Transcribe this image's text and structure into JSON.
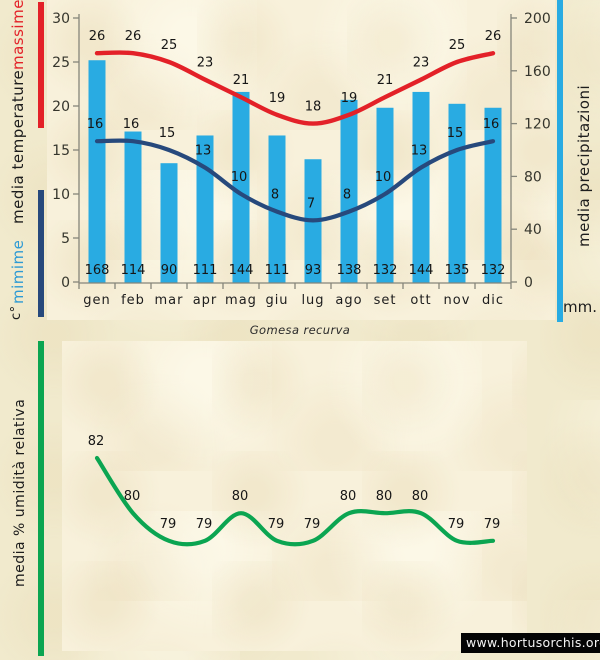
{
  "page": {
    "species_title": "Gomesa recurva",
    "watermark": "www.hortusorchis.org"
  },
  "colors": {
    "background": "#f1eacd",
    "panel": "#f8f1db",
    "precip_bar": "#29abe2",
    "max_temp_line": "#e32128",
    "min_temp_line": "#27497c",
    "humidity_line": "#0ba551",
    "value_text": "#161616",
    "tick_text": "#35352c",
    "axis_line": "#85857a"
  },
  "left_axis": {
    "label_massime": "massime",
    "label_media_temperature": "media temperature",
    "label_minime": "mimime",
    "label_unit": "c°",
    "ticks": [
      30,
      25,
      20,
      15,
      10,
      5,
      0
    ]
  },
  "right_axis": {
    "label": "media precipitazioni",
    "label_unit": "mm.",
    "ticks": [
      200,
      160,
      120,
      80,
      40,
      0
    ]
  },
  "humidity_axis": {
    "label": "media % umidità relativa"
  },
  "chart_data": [
    {
      "type": "bar",
      "title": "Gomesa recurva climate chart",
      "categories": [
        "gen",
        "feb",
        "mar",
        "apr",
        "mag",
        "giu",
        "lug",
        "ago",
        "set",
        "ott",
        "nov",
        "dic"
      ],
      "left_ylabel": "media temperature c°",
      "right_ylabel": "media precipitazioni mm.",
      "left_ylim": [
        0,
        30
      ],
      "right_ylim": [
        0,
        200
      ],
      "grid": false,
      "legend_position": "left-and-right-colored-bars",
      "series": [
        {
          "name": "massime",
          "type": "line",
          "axis": "left",
          "values": [
            26,
            26,
            25,
            23,
            21,
            19,
            18,
            19,
            21,
            23,
            25,
            26
          ]
        },
        {
          "name": "mimime",
          "type": "line",
          "axis": "left",
          "values": [
            16,
            16,
            15,
            13,
            10,
            8,
            7,
            8,
            10,
            13,
            15,
            16
          ]
        },
        {
          "name": "media precipitazioni",
          "type": "bar",
          "axis": "right",
          "values": [
            168,
            114,
            90,
            111,
            144,
            111,
            93,
            138,
            132,
            144,
            135,
            132
          ]
        }
      ]
    },
    {
      "type": "line",
      "title": "media % umidità relativa",
      "categories": [
        "gen",
        "feb",
        "mar",
        "apr",
        "mag",
        "giu",
        "lug",
        "ago",
        "set",
        "ott",
        "nov",
        "dic"
      ],
      "grid": false,
      "series": [
        {
          "name": "umidità relativa",
          "type": "line",
          "values": [
            82,
            80,
            79,
            79,
            80,
            79,
            79,
            80,
            80,
            80,
            79,
            79
          ]
        }
      ]
    }
  ]
}
